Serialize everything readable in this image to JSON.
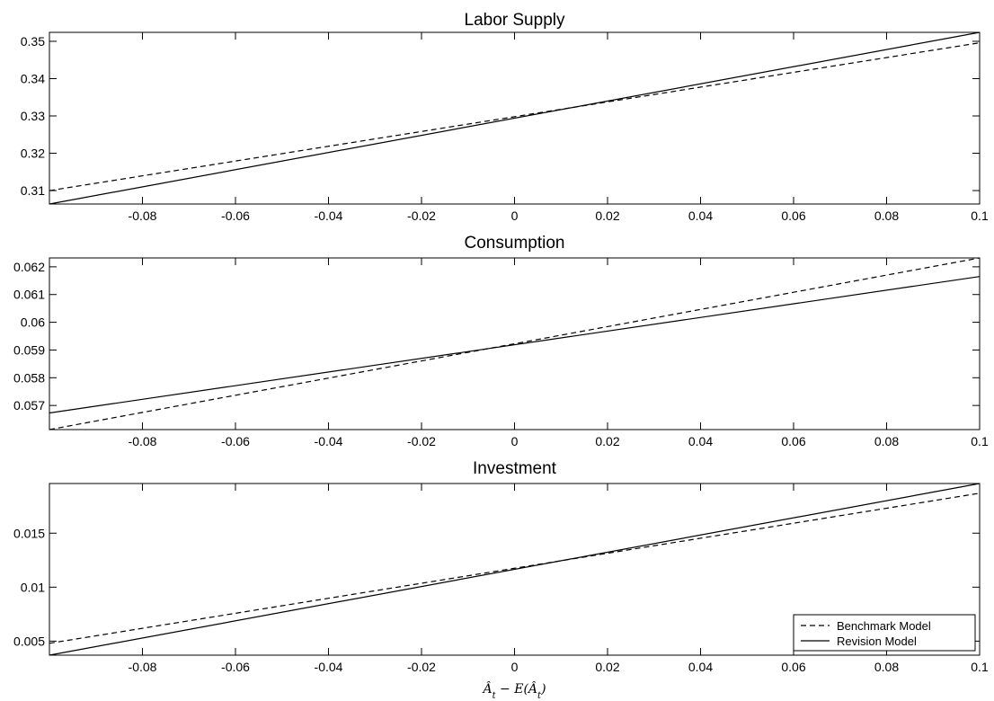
{
  "chart_data": [
    {
      "type": "line",
      "title": "Labor Supply",
      "xlim": [
        -0.1,
        0.1
      ],
      "ylim": [
        0.3064,
        0.3524
      ],
      "x_ticks": [
        "-0.08",
        "-0.06",
        "-0.04",
        "-0.02",
        "0",
        "0.02",
        "0.04",
        "0.06",
        "0.08",
        "0.1"
      ],
      "y_ticks": [
        "0.31",
        "0.32",
        "0.33",
        "0.34",
        "0.35"
      ],
      "series": [
        {
          "name": "Benchmark Model",
          "style": "dashed",
          "x": [
            -0.1,
            0.1
          ],
          "y": [
            0.31,
            0.3496
          ]
        },
        {
          "name": "Revision Model",
          "style": "solid",
          "x": [
            -0.1,
            0.1
          ],
          "y": [
            0.3064,
            0.3524
          ]
        }
      ]
    },
    {
      "type": "line",
      "title": "Consumption",
      "xlim": [
        -0.1,
        0.1
      ],
      "ylim": [
        0.05613,
        0.06232
      ],
      "x_ticks": [
        "-0.08",
        "-0.06",
        "-0.04",
        "-0.02",
        "0",
        "0.02",
        "0.04",
        "0.06",
        "0.08",
        "0.1"
      ],
      "y_ticks": [
        "0.057",
        "0.058",
        "0.059",
        "0.06",
        "0.061",
        "0.062"
      ],
      "series": [
        {
          "name": "Benchmark Model",
          "style": "dashed",
          "x": [
            -0.1,
            0.1
          ],
          "y": [
            0.05613,
            0.06232
          ]
        },
        {
          "name": "Revision Model",
          "style": "solid",
          "x": [
            -0.1,
            0.1
          ],
          "y": [
            0.05673,
            0.06165
          ]
        }
      ]
    },
    {
      "type": "line",
      "title": "Investment",
      "xlim": [
        -0.1,
        0.1
      ],
      "ylim": [
        0.0037,
        0.0196
      ],
      "x_ticks": [
        "-0.08",
        "-0.06",
        "-0.04",
        "-0.02",
        "0",
        "0.02",
        "0.04",
        "0.06",
        "0.08",
        "0.1"
      ],
      "y_ticks": [
        "0.005",
        "0.01",
        "0.015"
      ],
      "xlabel": "Â_t − E(Â_t)",
      "legend": {
        "position": "bottom-right",
        "entries": [
          "Benchmark Model",
          "Revision Model"
        ]
      },
      "series": [
        {
          "name": "Benchmark Model",
          "style": "dashed",
          "x": [
            -0.1,
            0.1
          ],
          "y": [
            0.0048,
            0.0187
          ]
        },
        {
          "name": "Revision Model",
          "style": "solid",
          "x": [
            -0.1,
            0.1
          ],
          "y": [
            0.0037,
            0.0196
          ]
        }
      ]
    }
  ]
}
